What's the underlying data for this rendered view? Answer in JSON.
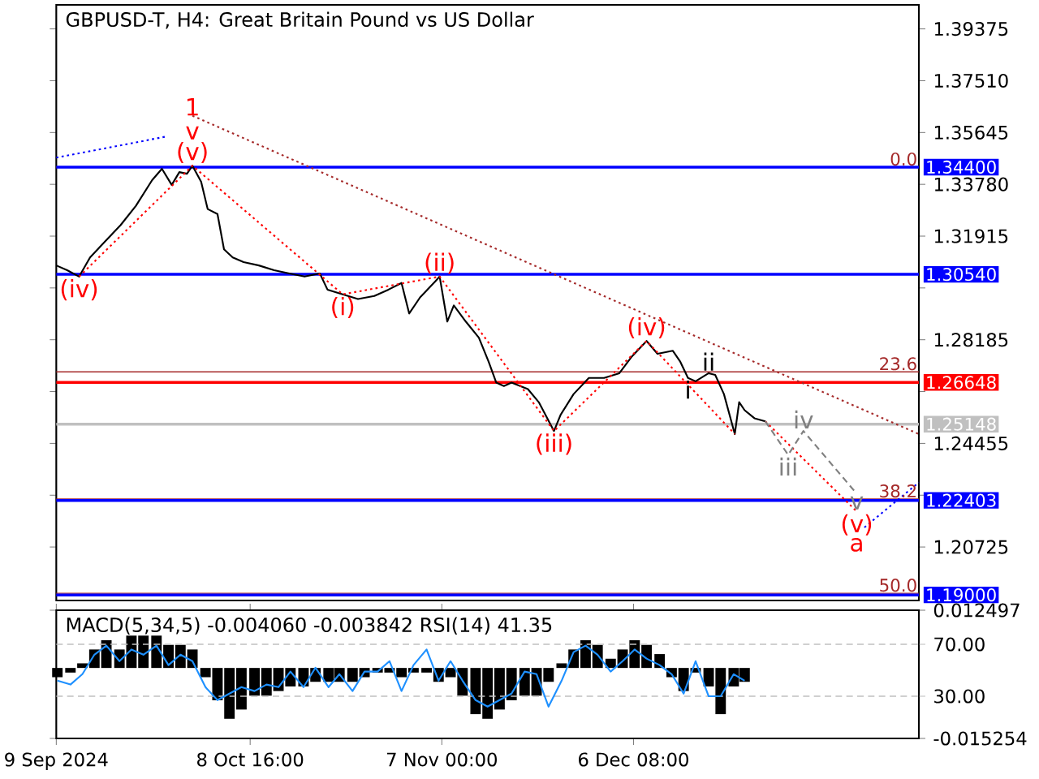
{
  "chart_data": [
    {
      "type": "line",
      "title": "GBPUSD-T, H4:  Great Britain Pound vs US Dollar",
      "xlim": [
        "2024-09-09T00:00",
        "2025-01-19T00:00"
      ],
      "ylim": [
        1.188,
        1.4024
      ],
      "tick_labels": "y",
      "yticks": [
        {
          "value": 1.39375,
          "label": "1.39375"
        },
        {
          "value": 1.3751,
          "label": "1.37510"
        },
        {
          "value": 1.35645,
          "label": "1.35645"
        },
        {
          "value": 1.3378,
          "label": "1.33780"
        },
        {
          "value": 1.31915,
          "label": "1.31915"
        },
        {
          "value": 1.3005,
          "label": null
        },
        {
          "value": 1.28185,
          "label": "1.28185"
        },
        {
          "value": 1.2632,
          "label": null
        },
        {
          "value": 1.24455,
          "label": "1.24455"
        },
        {
          "value": 1.2259,
          "label": null
        },
        {
          "value": 1.20725,
          "label": "1.20725"
        }
      ],
      "series": [
        {
          "color": "#000000",
          "line_style": "solid",
          "x": [
            "2024-09-09T00:00",
            "2024-09-10T16:00",
            "2024-09-12T12:00",
            "2024-09-14T04:00",
            "2024-09-16T12:00",
            "2024-09-18T20:00",
            "2024-09-21T04:00",
            "2024-09-23T16:00",
            "2024-09-25T04:00",
            "2024-09-26T16:00",
            "2024-09-27T20:00",
            "2024-09-29T00:00",
            "2024-09-29T20:00",
            "2024-10-01T04:00",
            "2024-10-02T04:00",
            "2024-10-03T16:00",
            "2024-10-04T16:00",
            "2024-10-06T00:00",
            "2024-10-07T16:00",
            "2024-10-10T00:00",
            "2024-10-12T08:00",
            "2024-10-14T16:00",
            "2024-10-17T00:00",
            "2024-10-19T08:00",
            "2024-10-20T12:00",
            "2024-10-22T20:00",
            "2024-10-25T04:00",
            "2024-10-27T16:00",
            "2024-10-29T20:00",
            "2024-10-31T20:00",
            "2024-11-02T00:00",
            "2024-11-03T16:00",
            "2024-11-06T00:00",
            "2024-11-06T16:00",
            "2024-11-07T20:00",
            "2024-11-08T20:00",
            "2024-11-10T16:00",
            "2024-11-12T16:00",
            "2024-11-14T04:00",
            "2024-11-15T08:00",
            "2024-11-16T12:00",
            "2024-11-17T16:00",
            "2024-11-20T04:00",
            "2024-11-21T20:00",
            "2024-11-24T04:00",
            "2024-11-25T04:00",
            "2024-11-27T04:00",
            "2024-11-29T12:00",
            "2024-12-01T20:00",
            "2024-12-04T04:00",
            "2024-12-06T00:00",
            "2024-12-08T08:00",
            "2024-12-10T00:00",
            "2024-12-12T08:00",
            "2024-12-13T12:00",
            "2024-12-14T16:00",
            "2024-12-15T20:00",
            "2024-12-17T20:00",
            "2024-12-18T20:00",
            "2024-12-20T04:00",
            "2024-12-21T20:00",
            "2024-12-22T12:00",
            "2024-12-23T08:00",
            "2024-12-24T20:00",
            "2024-12-26T12:00"
          ],
          "values": [
            1.3086,
            1.3069,
            1.3046,
            1.3115,
            1.3173,
            1.3231,
            1.33,
            1.3393,
            1.3434,
            1.3376,
            1.3422,
            1.3416,
            1.3445,
            1.3387,
            1.3289,
            1.3271,
            1.3144,
            1.3115,
            1.3098,
            1.3086,
            1.3069,
            1.3057,
            1.3046,
            1.3057,
            1.2999,
            1.2982,
            1.2965,
            1.2976,
            1.2999,
            1.3023,
            1.2913,
            1.2971,
            1.3029,
            1.3046,
            1.2884,
            1.2942,
            1.2884,
            1.2826,
            1.2739,
            1.2664,
            1.2652,
            1.2664,
            1.2641,
            1.2594,
            1.249,
            1.2548,
            1.2623,
            1.2681,
            1.2681,
            1.2698,
            1.2756,
            1.2814,
            1.2768,
            1.2779,
            1.2739,
            1.2681,
            1.2669,
            1.2698,
            1.2692,
            1.2623,
            1.2479,
            1.2594,
            1.2565,
            1.2536,
            1.2525
          ]
        },
        {
          "color": "#ff0000",
          "line_style": "dotted",
          "x": [
            "2024-09-12T12:00",
            "2024-09-29T20:00",
            "2024-10-22T20:00",
            "2024-11-06T16:00",
            "2024-11-24T04:00",
            "2024-12-08T08:00",
            "2024-12-21T20:00"
          ],
          "values": [
            1.3046,
            1.3445,
            1.2982,
            1.3046,
            1.249,
            1.2814,
            1.2479
          ]
        },
        {
          "color": "#ff0000",
          "line_style": "dotted",
          "x": [
            "2024-12-26T12:00",
            "2025-01-09T12:00"
          ],
          "values": [
            1.2525,
            1.22
          ]
        },
        {
          "color": "#a52a2a",
          "line_style": "dotted",
          "x": [
            "2024-09-29T20:00",
            "2025-01-19T00:00"
          ],
          "values": [
            1.3625,
            1.2479
          ]
        },
        {
          "color": "#808080",
          "line_style": "dashed",
          "x": [
            "2024-12-26T12:00",
            "2024-12-30T00:00",
            "2025-01-01T08:00",
            "2025-01-09T12:00"
          ],
          "values": [
            1.2525,
            1.2404,
            1.249,
            1.2264
          ]
        },
        {
          "color": "#0000ff",
          "line_style": "dotted",
          "x": [
            "2024-09-09T00:00",
            "2024-09-25T20:00",
            "2024-11-18T00:00",
            "2025-01-10T16:00",
            "2025-01-19T00:00"
          ],
          "values": [
            1.3474,
            1.355,
            null,
            1.2143,
            1.2305
          ]
        }
      ],
      "ref_lines": [
        {
          "axis": "y",
          "value": 1.344,
          "color": "#a52a2a"
        },
        {
          "axis": "y",
          "value": 1.2703,
          "color": "#a52a2a"
        },
        {
          "axis": "y",
          "value": 1.2245,
          "color": "#a52a2a"
        },
        {
          "axis": "y",
          "value": 1.1906,
          "color": "#a52a2a"
        },
        {
          "axis": "y",
          "value": 1.344,
          "label": "1.34400",
          "color": "#0000ff"
        },
        {
          "axis": "y",
          "value": 1.3054,
          "label": "1.30540",
          "color": "#0000ff"
        },
        {
          "axis": "y",
          "value": 1.26648,
          "label": "1.26648",
          "color": "#ff0000"
        },
        {
          "axis": "y",
          "value": 1.25148,
          "label": "1.25148",
          "color": "#c0c0c0"
        },
        {
          "axis": "y",
          "value": 1.22403,
          "label": "1.22403",
          "color": "#0000ff"
        },
        {
          "axis": "y",
          "value": 1.19,
          "label": "1.19000",
          "color": "#0000ff"
        }
      ],
      "annotations": [
        {
          "text": "1",
          "x": "2024-09-29T20:00",
          "y": 1.3445
        },
        {
          "text": "v",
          "x": "2024-09-29T20:00",
          "y": 1.3445
        },
        {
          "text": "(v)",
          "x": "2024-09-29T20:00",
          "y": 1.3445
        },
        {
          "text": "(iv)",
          "x": "2024-09-12T12:00",
          "y": 1.3046
        },
        {
          "text": "(i)",
          "x": "2024-10-22T20:00",
          "y": 1.2982
        },
        {
          "text": "(ii)",
          "x": "2024-11-06T16:00",
          "y": 1.3046
        },
        {
          "text": "(iii)",
          "x": "2024-11-24T04:00",
          "y": 1.249
        },
        {
          "text": "(iv)",
          "x": "2024-12-08T08:00",
          "y": 1.2814
        },
        {
          "text": "ii",
          "x": "2024-12-17T20:00",
          "y": 1.2698
        },
        {
          "text": "i",
          "x": "2024-12-14T16:00",
          "y": 1.2681
        },
        {
          "text": "iv",
          "x": "2025-01-01T08:00",
          "y": 1.249
        },
        {
          "text": "iii",
          "x": "2024-12-30T00:00",
          "y": 1.2404
        },
        {
          "text": "v",
          "x": "2025-01-09T12:00",
          "y": 1.2264
        },
        {
          "text": "(v)",
          "x": "2025-01-09T12:00",
          "y": 1.22
        },
        {
          "text": "a",
          "x": "2025-01-09T12:00",
          "y": 1.22
        },
        {
          "text": "0.0",
          "x": "2025-01-19T00:00",
          "y": 1.344
        },
        {
          "text": "23.6",
          "x": "2025-01-19T00:00",
          "y": 1.2703
        },
        {
          "text": "38.2",
          "x": "2025-01-19T00:00",
          "y": 1.2245
        },
        {
          "text": "50.0",
          "x": "2025-01-19T00:00",
          "y": 1.1906
        }
      ]
    },
    {
      "type": "bar",
      "title": "MACD(5,34,5) -0.004060 -0.003842 RSI(14) 41.35",
      "xlim": [
        "2024-09-09T00:00",
        "2025-01-19T00:00"
      ],
      "ylim": [
        -0.015254,
        0.012497
      ],
      "xticks": [
        {
          "value": "2024-09-09T00:00",
          "label": "9 Sep 2024"
        },
        {
          "value": "2024-10-08T16:00",
          "label": "8 Oct 16:00"
        },
        {
          "value": "2024-11-07T00:00",
          "label": "7 Nov 00:00"
        },
        {
          "value": "2024-12-06T08:00",
          "label": "6 Dec 08:00"
        }
      ],
      "yticks": [
        {
          "value": 0.012497,
          "label": "0.012497"
        },
        {
          "value": -0.015254,
          "label": "-0.015254"
        }
      ],
      "y2lim": [
        -2.5,
        96.25
      ],
      "y2ticks": [
        {
          "value": 70,
          "label": "70.00"
        },
        {
          "value": 30,
          "label": "30.00"
        }
      ],
      "x": [
        "2024-09-09T04:00",
        "2024-09-11T04:00",
        "2024-09-13T00:00",
        "2024-09-14T20:00",
        "2024-09-16T16:00",
        "2024-09-18T16:00",
        "2024-09-20T12:00",
        "2024-09-22T08:00",
        "2024-09-24T08:00",
        "2024-09-26T04:00",
        "2024-09-28T00:00",
        "2024-09-29T20:00",
        "2024-10-01T20:00",
        "2024-10-03T16:00",
        "2024-10-05T12:00",
        "2024-10-07T08:00",
        "2024-10-09T08:00",
        "2024-10-11T04:00",
        "2024-10-13T00:00",
        "2024-10-14T20:00",
        "2024-10-16T20:00",
        "2024-10-18T16:00",
        "2024-10-20T16:00",
        "2024-10-22T08:00",
        "2024-10-24T08:00",
        "2024-10-26T04:00",
        "2024-10-28T04:00",
        "2024-10-30T00:00",
        "2024-10-31T20:00",
        "2024-11-02T16:00",
        "2024-11-04T16:00",
        "2024-11-06T12:00",
        "2024-11-08T08:00",
        "2024-11-10T04:00",
        "2024-11-12T04:00",
        "2024-11-14T00:00",
        "2024-11-15T20:00",
        "2024-11-17T16:00",
        "2024-11-19T16:00",
        "2024-11-21T12:00",
        "2024-11-23T08:00",
        "2024-11-25T08:00",
        "2024-11-27T04:00",
        "2024-11-29T00:00",
        "2024-11-30T20:00",
        "2024-12-02T20:00",
        "2024-12-04T16:00",
        "2024-12-06T12:00",
        "2024-12-08T08:00",
        "2024-12-10T08:00",
        "2024-12-12T04:00",
        "2024-12-14T00:00",
        "2024-12-15T20:00",
        "2024-12-17T20:00",
        "2024-12-19T16:00",
        "2024-12-21T16:00",
        "2024-12-23T08:00"
      ],
      "series": [
        {
          "color": "#000000",
          "values": [
            -0.002,
            -0.001,
            0.001,
            0.004,
            0.006,
            0.004,
            0.007,
            0.007,
            0.007,
            0.005,
            0.005,
            0.004,
            -0.002,
            -0.007,
            -0.011,
            -0.009,
            -0.006,
            -0.006,
            -0.005,
            -0.004,
            -0.004,
            -0.003,
            -0.003,
            -0.003,
            -0.003,
            -0.002,
            -0.001,
            -0.001,
            -0.002,
            -0.001,
            -0.001,
            -0.003,
            -0.002,
            -0.006,
            -0.01,
            -0.011,
            -0.009,
            -0.007,
            -0.006,
            -0.006,
            -0.003,
            0.001,
            0.004,
            0.006,
            0.005,
            0.002,
            0.004,
            0.006,
            0.005,
            0.003,
            -0.002,
            -0.005,
            -0.001,
            -0.004,
            -0.01,
            -0.004,
            -0.003
          ]
        },
        {
          "type": "line",
          "axis": "y2",
          "color": "#1e90ff",
          "line_style": "solid",
          "values": [
            42,
            39,
            47,
            62,
            69,
            57,
            66,
            62,
            69,
            54,
            62,
            57,
            37,
            27,
            32,
            37,
            34,
            39,
            37,
            49,
            37,
            52,
            37,
            47,
            34,
            49,
            49,
            57,
            34,
            54,
            66,
            42,
            57,
            42,
            27,
            22,
            27,
            32,
            49,
            47,
            22,
            42,
            64,
            69,
            62,
            49,
            57,
            66,
            59,
            54,
            47,
            32,
            57,
            30,
            30,
            47,
            42
          ]
        }
      ],
      "ref_lines": [
        {
          "axis": "y2",
          "value": 70,
          "color": "#c0c0c0",
          "line_style": "dashed"
        },
        {
          "axis": "y2",
          "value": 30,
          "color": "#c0c0c0",
          "line_style": "dashed"
        }
      ]
    }
  ]
}
